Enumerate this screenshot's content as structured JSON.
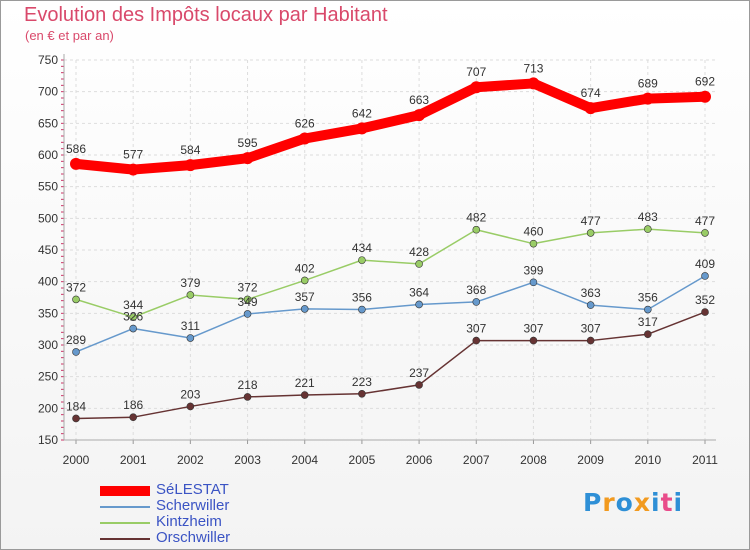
{
  "header": {
    "title": "Evolution des Impôts locaux par Habitant",
    "subtitle": "(en € et par an)"
  },
  "chart_data": {
    "type": "line",
    "x": [
      "2000",
      "2001",
      "2002",
      "2003",
      "2004",
      "2005",
      "2006",
      "2007",
      "2008",
      "2009",
      "2010",
      "2011"
    ],
    "ylim": [
      150,
      750
    ],
    "yticks": [
      150,
      200,
      250,
      300,
      350,
      400,
      450,
      500,
      550,
      600,
      650,
      700,
      750
    ],
    "grid": true,
    "legend_position": "bottom-left",
    "series": [
      {
        "name": "SéLESTAT",
        "color": "#ff0000",
        "values": [
          586,
          577,
          584,
          595,
          626,
          642,
          663,
          707,
          713,
          674,
          689,
          692
        ]
      },
      {
        "name": "Scherwiller",
        "color": "#6699cc",
        "values": [
          289,
          326,
          311,
          349,
          357,
          356,
          364,
          368,
          399,
          363,
          356,
          409
        ]
      },
      {
        "name": "Kintzheim",
        "color": "#99cc66",
        "values": [
          372,
          344,
          379,
          372,
          402,
          434,
          428,
          482,
          460,
          477,
          483,
          477
        ]
      },
      {
        "name": "Orschwiller",
        "color": "#663333",
        "values": [
          184,
          186,
          203,
          218,
          221,
          223,
          237,
          307,
          307,
          307,
          317,
          352
        ]
      }
    ]
  },
  "logo": {
    "letters": [
      "P",
      "r",
      "o",
      "x",
      "i",
      "t",
      "i"
    ],
    "colors": [
      "#2e8fd6",
      "#f29a1f",
      "#2e8fd6",
      "#f29a1f",
      "#2e8fd6",
      "#e94c8a",
      "#2e8fd6"
    ]
  }
}
